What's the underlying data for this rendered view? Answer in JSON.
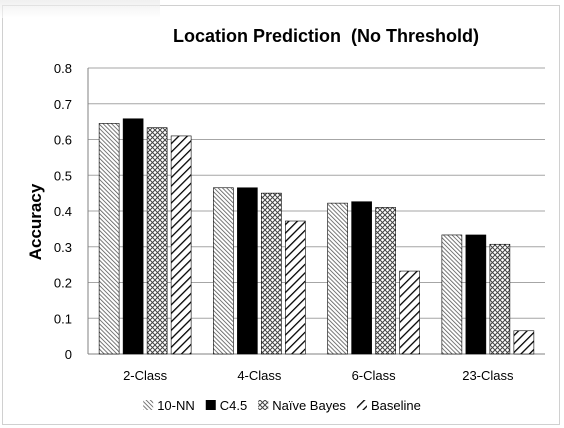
{
  "chart_data": {
    "type": "bar",
    "title": "Location Prediction  (No Threshold)",
    "ylabel": "Accuracy",
    "xlabel": "",
    "ylim": [
      0,
      0.8
    ],
    "yticks": [
      "0",
      "0.1",
      "0.2",
      "0.3",
      "0.4",
      "0.5",
      "0.6",
      "0.7",
      "0.8"
    ],
    "grid": true,
    "legend_position": "bottom",
    "categories": [
      "2-Class",
      "4-Class",
      "6-Class",
      "23-Class"
    ],
    "series": [
      {
        "name": "10-NN",
        "pattern": "fine-diagonal",
        "values": [
          0.645,
          0.465,
          0.422,
          0.333
        ]
      },
      {
        "name": "C4.5",
        "pattern": "solid-black",
        "values": [
          0.658,
          0.465,
          0.426,
          0.333
        ]
      },
      {
        "name": "Naïve Bayes",
        "pattern": "crosshatch",
        "values": [
          0.633,
          0.45,
          0.41,
          0.307
        ]
      },
      {
        "name": "Baseline",
        "pattern": "wide-diagonal",
        "values": [
          0.61,
          0.372,
          0.232,
          0.065
        ]
      }
    ]
  }
}
